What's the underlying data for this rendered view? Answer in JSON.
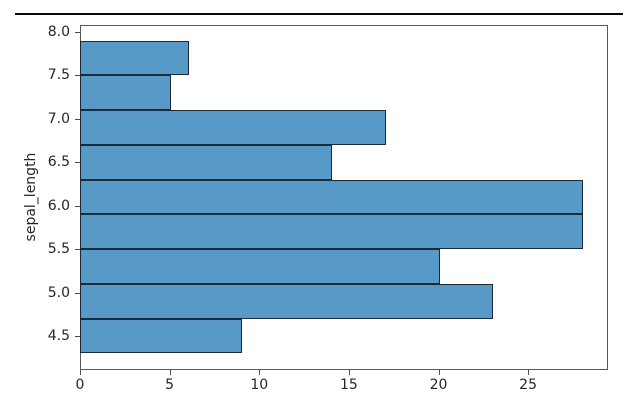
{
  "figure": {
    "background_color": "#ffffff",
    "top_rule_color": "#0a0a0a"
  },
  "chart_data": {
    "type": "bar",
    "subtype": "histogram",
    "orientation": "horizontal",
    "title": "",
    "xlabel": "",
    "ylabel": "sepal_length",
    "bin_edges": [
      4.3,
      4.7,
      5.1,
      5.5,
      5.9,
      6.3,
      6.7,
      7.1,
      7.5,
      7.9
    ],
    "values": [
      9,
      23,
      20,
      28,
      28,
      14,
      17,
      5,
      6
    ],
    "x_ticks": [
      {
        "v": 0,
        "label": "0"
      },
      {
        "v": 5,
        "label": "5"
      },
      {
        "v": 10,
        "label": "10"
      },
      {
        "v": 15,
        "label": "15"
      },
      {
        "v": 20,
        "label": "20"
      },
      {
        "v": 25,
        "label": "25"
      }
    ],
    "y_ticks": [
      {
        "v": 8.0,
        "label": "8.0"
      },
      {
        "v": 7.5,
        "label": "7.5"
      },
      {
        "v": 7.0,
        "label": "7.0"
      },
      {
        "v": 6.5,
        "label": "6.5"
      },
      {
        "v": 6.0,
        "label": "6.0"
      },
      {
        "v": 5.5,
        "label": "5.5"
      },
      {
        "v": 5.0,
        "label": "5.0"
      },
      {
        "v": 4.5,
        "label": "4.5"
      }
    ],
    "xlim": [
      0,
      29.4
    ],
    "ylim": [
      4.12,
      8.08
    ],
    "grid": false,
    "legend": null,
    "colors": {
      "bar_fill": "#5799c7",
      "bar_edge": "#1c2a36",
      "spine": "#595959",
      "tick": "#4d4d4d",
      "text": "#262626"
    }
  }
}
